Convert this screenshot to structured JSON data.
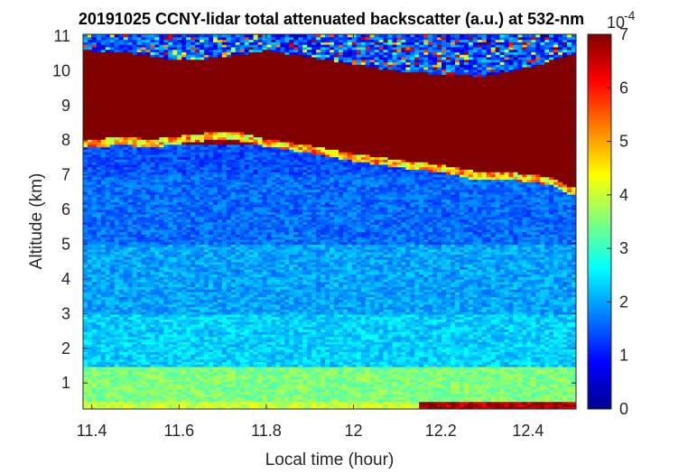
{
  "chart_data": {
    "type": "heatmap",
    "title": "20191025 CCNY-lidar total attenuated backscatter (a.u.) at 532-nm",
    "xlabel": "Local time (hour)",
    "ylabel": "Altitude (km)",
    "xlim": [
      11.38,
      12.51
    ],
    "ylim": [
      0.25,
      11.05
    ],
    "xticks": [
      11.4,
      11.6,
      11.8,
      12,
      12.2,
      12.4
    ],
    "xtick_labels": [
      "11.4",
      "11.6",
      "11.8",
      "12",
      "12.2",
      "12.4"
    ],
    "yticks": [
      1,
      2,
      3,
      4,
      5,
      6,
      7,
      8,
      9,
      10,
      11
    ],
    "ytick_labels": [
      "1",
      "2",
      "3",
      "4",
      "5",
      "6",
      "7",
      "8",
      "9",
      "10",
      "11"
    ],
    "colormap": "jet",
    "colorbar": {
      "clim": [
        0,
        7
      ],
      "ticks": [
        0,
        1,
        2,
        3,
        4,
        5,
        6,
        7
      ],
      "tick_labels": [
        "0",
        "1",
        "2",
        "3",
        "4",
        "5",
        "6",
        "7"
      ],
      "exponent_label": "10",
      "exponent_power": "-4"
    },
    "cloud_base_km": [
      {
        "time": 11.38,
        "alt": 8.0
      },
      {
        "time": 11.45,
        "alt": 8.08
      },
      {
        "time": 11.55,
        "alt": 8.05
      },
      {
        "time": 11.65,
        "alt": 8.2
      },
      {
        "time": 11.72,
        "alt": 8.28
      },
      {
        "time": 11.8,
        "alt": 8.05
      },
      {
        "time": 11.9,
        "alt": 7.85
      },
      {
        "time": 12.0,
        "alt": 7.62
      },
      {
        "time": 12.1,
        "alt": 7.45
      },
      {
        "time": 12.2,
        "alt": 7.3
      },
      {
        "time": 12.28,
        "alt": 7.1
      },
      {
        "time": 12.35,
        "alt": 7.1
      },
      {
        "time": 12.45,
        "alt": 6.95
      },
      {
        "time": 12.51,
        "alt": 6.6
      }
    ],
    "cloud_top_km": [
      {
        "time": 11.38,
        "alt": 10.6
      },
      {
        "time": 11.5,
        "alt": 10.5
      },
      {
        "time": 11.6,
        "alt": 10.3
      },
      {
        "time": 11.7,
        "alt": 10.4
      },
      {
        "time": 11.8,
        "alt": 10.6
      },
      {
        "time": 11.9,
        "alt": 10.4
      },
      {
        "time": 12.0,
        "alt": 10.2
      },
      {
        "time": 12.1,
        "alt": 10.0
      },
      {
        "time": 12.2,
        "alt": 9.9
      },
      {
        "time": 12.3,
        "alt": 9.85
      },
      {
        "time": 12.4,
        "alt": 10.1
      },
      {
        "time": 12.51,
        "alt": 10.5
      }
    ],
    "profile_levels_1e-4": [
      {
        "alt_from": 0.25,
        "alt_to": 0.5,
        "value": 4.0
      },
      {
        "alt_from": 0.5,
        "alt_to": 1.5,
        "value": 3.5
      },
      {
        "alt_from": 1.5,
        "alt_to": 3.0,
        "value": 2.3
      },
      {
        "alt_from": 3.0,
        "alt_to": 5.0,
        "value": 2.0
      },
      {
        "alt_from": 5.0,
        "alt_to": 7.0,
        "value": 1.6
      },
      {
        "alt_from": 7.0,
        "alt_to": 7.9,
        "value": 1.4
      },
      {
        "alt_from": 7.9,
        "alt_to": 10.3,
        "value": 7.0
      },
      {
        "alt_from": 10.3,
        "alt_to": 11.05,
        "value": 1.0
      }
    ]
  }
}
